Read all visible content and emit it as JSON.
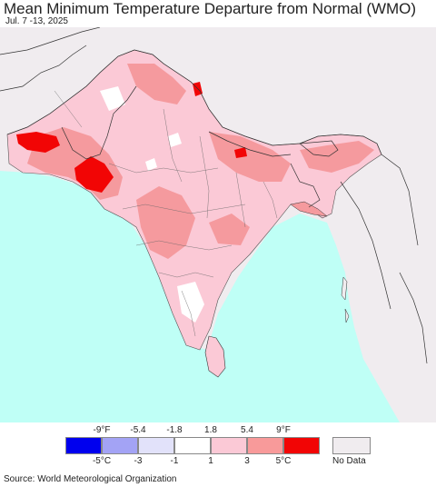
{
  "title": "Mean Minimum Temperature Departure from Normal (WMO)",
  "date_range": "Jul. 7 -13, 2025",
  "source": "Source: World Meteorological Organization",
  "legend": {
    "fahrenheit_ticks": [
      "-9°F",
      "-5.4",
      "-1.8",
      "1.8",
      "5.4",
      "9°F"
    ],
    "celsius_ticks": [
      "-5°C",
      "-3",
      "-1",
      "1",
      "3",
      "5°C"
    ],
    "bins": [
      {
        "color": "#0000ee"
      },
      {
        "color": "#a3a3f5"
      },
      {
        "color": "#e2e2fa"
      },
      {
        "color": "#ffffff"
      },
      {
        "color": "#fbc9d6"
      },
      {
        "color": "#f89a9a"
      },
      {
        "color": "#f20505"
      }
    ],
    "no_data_label": "No Data",
    "no_data_color": "#f0ecef"
  },
  "colors": {
    "ocean": "#bffff6",
    "land_no_data": "#f0ecef",
    "light_pink": "#fbc9d6",
    "pink": "#f8a9b6",
    "salmon": "#f59a9e",
    "red": "#f20505",
    "white": "#ffffff"
  }
}
